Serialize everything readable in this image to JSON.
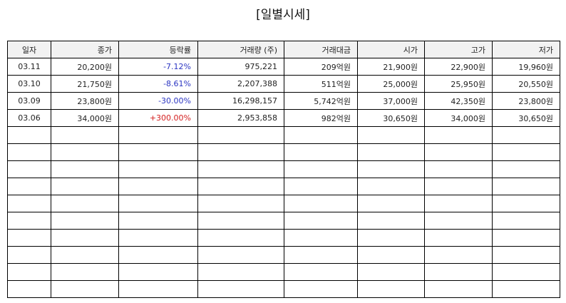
{
  "title": "[일별시세]",
  "columns": [
    "일자",
    "종가",
    "등락률",
    "거래량 (주)",
    "거래대금",
    "시가",
    "고가",
    "저가"
  ],
  "rows": [
    {
      "date": "03.11",
      "close": "20,200원",
      "change": "-7.12%",
      "volume": "975,221",
      "amount": "209억원",
      "open": "21,900원",
      "high": "22,900원",
      "low": "19,960원"
    },
    {
      "date": "03.10",
      "close": "21,750원",
      "change": "-8.61%",
      "volume": "2,207,388",
      "amount": "511억원",
      "open": "25,000원",
      "high": "25,950원",
      "low": "20,550원"
    },
    {
      "date": "03.09",
      "close": "23,800원",
      "change": "-30.00%",
      "volume": "16,298,157",
      "amount": "5,742억원",
      "open": "37,000원",
      "high": "42,350원",
      "low": "23,800원"
    },
    {
      "date": "03.06",
      "close": "34,000원",
      "change": "+300.00%",
      "volume": "2,953,858",
      "amount": "982억원",
      "open": "30,650원",
      "high": "34,000원",
      "low": "30,650원"
    }
  ],
  "colors": {
    "negative": "#2b35c2",
    "positive": "#d42020"
  }
}
